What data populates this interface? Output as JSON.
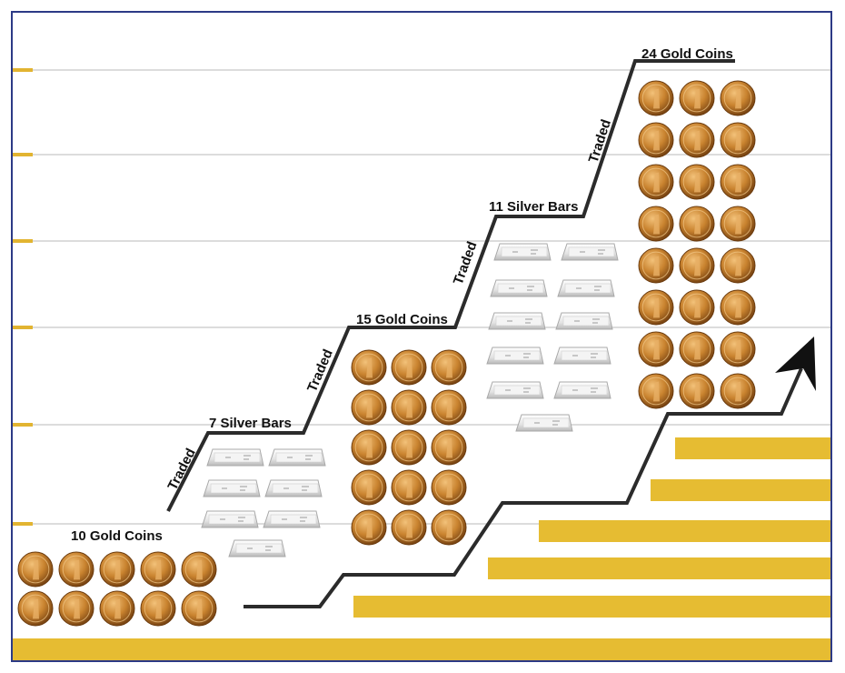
{
  "diagram": {
    "stages": [
      {
        "id": "stage1",
        "label": "10 Gold Coins",
        "kind": "coins",
        "count": 10
      },
      {
        "id": "stage2",
        "label": "7 Silver Bars",
        "kind": "bars",
        "count": 7
      },
      {
        "id": "stage3",
        "label": "15 Gold Coins",
        "kind": "coins",
        "count": 15
      },
      {
        "id": "stage4",
        "label": "11 Silver Bars",
        "kind": "bars",
        "count": 11
      },
      {
        "id": "stage5",
        "label": "24 Gold Coins",
        "kind": "coins",
        "count": 24
      }
    ],
    "transitions": [
      {
        "label": "Traded"
      },
      {
        "label": "Traded"
      },
      {
        "label": "Traded"
      },
      {
        "label": "Traded"
      }
    ],
    "colors": {
      "frame": "#2c3a86",
      "tick": "#e2b431",
      "gridline": "#d9d9d9",
      "gold_bar": "#e6bc32",
      "line": "#2b2b2b",
      "coin": "#c07a2a"
    }
  }
}
